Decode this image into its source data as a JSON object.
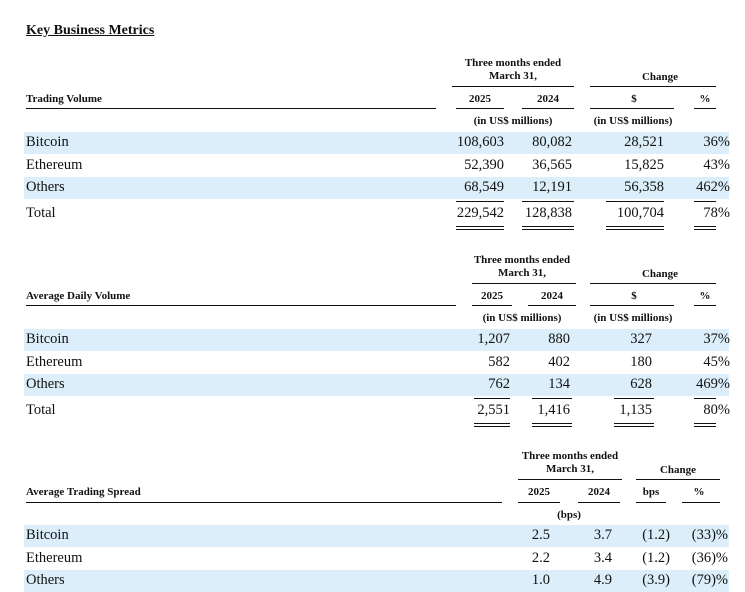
{
  "title": "Key Business Metrics",
  "common": {
    "period_line1": "Three months ended",
    "period_line2": "March 31,",
    "change": "Change",
    "y2025": "2025",
    "y2024": "2024",
    "dollar": "$",
    "pct": "%",
    "in_millions": "(in US$ millions)",
    "bps_unit": "(bps)",
    "bps": "bps"
  },
  "trading_volume": {
    "label": "Trading Volume",
    "rows": [
      {
        "name": "Bitcoin",
        "v2025": "108,603",
        "v2024": "80,082",
        "chg": "28,521",
        "pct": "36%"
      },
      {
        "name": "Ethereum",
        "v2025": "52,390",
        "v2024": "36,565",
        "chg": "15,825",
        "pct": "43%"
      },
      {
        "name": "Others",
        "v2025": "68,549",
        "v2024": "12,191",
        "chg": "56,358",
        "pct": "462%"
      },
      {
        "name": "Total",
        "v2025": "229,542",
        "v2024": "128,838",
        "chg": "100,704",
        "pct": "78%"
      }
    ]
  },
  "average_daily_volume": {
    "label": "Average Daily Volume",
    "rows": [
      {
        "name": "Bitcoin",
        "v2025": "1,207",
        "v2024": "880",
        "chg": "327",
        "pct": "37%"
      },
      {
        "name": "Ethereum",
        "v2025": "582",
        "v2024": "402",
        "chg": "180",
        "pct": "45%"
      },
      {
        "name": "Others",
        "v2025": "762",
        "v2024": "134",
        "chg": "628",
        "pct": "469%"
      },
      {
        "name": "Total",
        "v2025": "2,551",
        "v2024": "1,416",
        "chg": "1,135",
        "pct": "80%"
      }
    ]
  },
  "average_trading_spread": {
    "label": "Average Trading Spread",
    "rows": [
      {
        "name": "Bitcoin",
        "v2025": "2.5",
        "v2024": "3.7",
        "chg": "(1.2)",
        "pct": "(33)%"
      },
      {
        "name": "Ethereum",
        "v2025": "2.2",
        "v2024": "3.4",
        "chg": "(1.2)",
        "pct": "(36)%"
      },
      {
        "name": "Others",
        "v2025": "1.0",
        "v2024": "4.9",
        "chg": "(3.9)",
        "pct": "(79)%"
      }
    ]
  }
}
